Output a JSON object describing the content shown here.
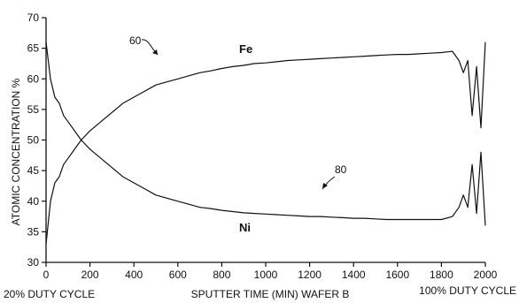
{
  "chart_data": {
    "type": "line",
    "title": "",
    "xlabel": "SPUTTER TIME (MIN) WAFER B",
    "ylabel": "ATOMIC CONCENTRATION %",
    "left_caption": "20% DUTY CYCLE",
    "right_caption": "100% DUTY CYCLE",
    "xlim": [
      0,
      2000
    ],
    "ylim": [
      30,
      70
    ],
    "x_ticks": [
      0,
      200,
      400,
      600,
      800,
      1000,
      1200,
      1400,
      1600,
      1800,
      2000
    ],
    "y_ticks": [
      30,
      35,
      40,
      45,
      50,
      55,
      60,
      65,
      70
    ],
    "grid": false,
    "legend": "none",
    "annotations": [
      {
        "text": "60",
        "series": "Fe"
      },
      {
        "text": "80",
        "series": "Ni"
      }
    ],
    "series": [
      {
        "name": "Fe",
        "color": "#111111",
        "x": [
          0,
          20,
          40,
          60,
          80,
          100,
          130,
          160,
          200,
          250,
          300,
          350,
          400,
          450,
          500,
          550,
          600,
          650,
          700,
          750,
          800,
          850,
          900,
          950,
          1000,
          1050,
          1100,
          1150,
          1200,
          1250,
          1300,
          1350,
          1400,
          1450,
          1500,
          1550,
          1600,
          1650,
          1700,
          1750,
          1800,
          1850,
          1880,
          1900,
          1920,
          1940,
          1960,
          1980,
          2000
        ],
        "y": [
          33,
          40,
          43,
          44,
          46,
          47,
          48.5,
          50,
          51.5,
          53,
          54.5,
          56,
          57,
          58,
          59,
          59.5,
          60,
          60.5,
          61,
          61.3,
          61.7,
          62,
          62.2,
          62.5,
          62.6,
          62.8,
          63,
          63.1,
          63.2,
          63.3,
          63.4,
          63.5,
          63.6,
          63.7,
          63.8,
          63.9,
          64,
          64,
          64.1,
          64.2,
          64.3,
          64.5,
          63,
          61,
          63,
          54,
          62,
          52,
          66
        ]
      },
      {
        "name": "Ni",
        "color": "#111111",
        "x": [
          0,
          20,
          40,
          60,
          80,
          100,
          130,
          160,
          200,
          250,
          300,
          350,
          400,
          450,
          500,
          550,
          600,
          650,
          700,
          750,
          800,
          850,
          900,
          950,
          1000,
          1050,
          1100,
          1150,
          1200,
          1250,
          1300,
          1350,
          1400,
          1450,
          1500,
          1550,
          1600,
          1650,
          1700,
          1750,
          1800,
          1850,
          1880,
          1900,
          1920,
          1940,
          1960,
          1980,
          2000
        ],
        "y": [
          66,
          60,
          57,
          56,
          54,
          53,
          51.5,
          50,
          48.5,
          47,
          45.5,
          44,
          43,
          42,
          41,
          40.5,
          40,
          39.5,
          39,
          38.8,
          38.5,
          38.3,
          38.1,
          38,
          37.9,
          37.8,
          37.7,
          37.6,
          37.5,
          37.5,
          37.4,
          37.3,
          37.2,
          37.2,
          37.1,
          37,
          37,
          37,
          37,
          37,
          37,
          37.5,
          39,
          41,
          39,
          46,
          38,
          48,
          36
        ]
      }
    ]
  }
}
